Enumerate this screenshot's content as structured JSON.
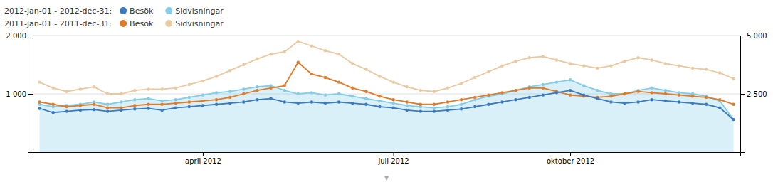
{
  "chart_data": {
    "type": "line",
    "categories": [
      null,
      null,
      null,
      null,
      null,
      null,
      null,
      null,
      null,
      null,
      null,
      null,
      "april 2012",
      null,
      null,
      null,
      null,
      null,
      null,
      null,
      null,
      null,
      null,
      null,
      null,
      null,
      "juli 2012",
      null,
      null,
      null,
      null,
      null,
      null,
      null,
      null,
      null,
      null,
      null,
      null,
      "oktober 2012",
      null,
      null,
      null,
      null,
      null,
      null,
      null,
      null,
      null,
      null,
      null,
      null
    ],
    "series": [
      {
        "name": "Sidvisningar",
        "color": "#e8c9a0",
        "values": [
          1200,
          1100,
          1040,
          1080,
          1120,
          1000,
          1000,
          1060,
          1080,
          1080,
          1100,
          1160,
          1220,
          1300,
          1400,
          1500,
          1600,
          1680,
          1720,
          1900,
          1820,
          1740,
          1680,
          1520,
          1420,
          1300,
          1200,
          1120,
          1060,
          1040,
          1100,
          1180,
          1280,
          1380,
          1480,
          1560,
          1620,
          1640,
          1580,
          1520,
          1480,
          1440,
          1480,
          1560,
          1620,
          1580,
          1520,
          1480,
          1440,
          1420,
          1360,
          1260
        ]
      },
      {
        "name": "Sidvisningar",
        "color": "#82cce8",
        "type": "area",
        "values": [
          820,
          780,
          800,
          820,
          860,
          820,
          860,
          900,
          920,
          880,
          900,
          940,
          980,
          1020,
          1040,
          1080,
          1120,
          1140,
          1060,
          1000,
          1020,
          980,
          1000,
          960,
          920,
          880,
          840,
          800,
          780,
          760,
          780,
          820,
          900,
          960,
          1000,
          1060,
          1120,
          1160,
          1200,
          1240,
          1140,
          1060,
          1000,
          1000,
          1060,
          1100,
          1060,
          1020,
          1000,
          960,
          880,
          560
        ]
      },
      {
        "name": "Besök",
        "color": "#e07b2a",
        "values": [
          860,
          820,
          780,
          800,
          820,
          760,
          760,
          800,
          820,
          820,
          840,
          860,
          880,
          900,
          940,
          1000,
          1060,
          1100,
          1140,
          1540,
          1340,
          1280,
          1200,
          1100,
          1040,
          960,
          900,
          860,
          820,
          820,
          860,
          900,
          940,
          980,
          1020,
          1060,
          1100,
          1100,
          1040,
          980,
          960,
          940,
          960,
          1000,
          1040,
          1020,
          1000,
          980,
          960,
          940,
          900,
          820
        ]
      },
      {
        "name": "Besök",
        "color": "#3a7abf",
        "values": [
          750,
          680,
          700,
          720,
          730,
          700,
          720,
          740,
          750,
          720,
          760,
          780,
          800,
          820,
          840,
          860,
          900,
          920,
          860,
          840,
          860,
          840,
          860,
          840,
          820,
          780,
          760,
          720,
          700,
          700,
          720,
          740,
          780,
          820,
          860,
          900,
          940,
          980,
          1020,
          1060,
          980,
          920,
          860,
          840,
          860,
          900,
          880,
          860,
          840,
          820,
          760,
          560
        ]
      }
    ],
    "annotations": [
      "2012-jan-01 - 2012-dec-31:",
      "2011-jan-01 - 2011-dec-31:",
      "▼"
    ],
    "ylim": [
      0,
      2000
    ],
    "yticks": [
      {
        "value": 1000,
        "label": "1 000"
      },
      {
        "value": 2000,
        "label": "2 000"
      }
    ],
    "y2lim": [
      0,
      5000
    ],
    "y2ticks": [
      {
        "value": 2500,
        "label": "2 500"
      },
      {
        "value": 5000,
        "label": "5 000"
      }
    ],
    "grid": true,
    "marker": "circle"
  }
}
